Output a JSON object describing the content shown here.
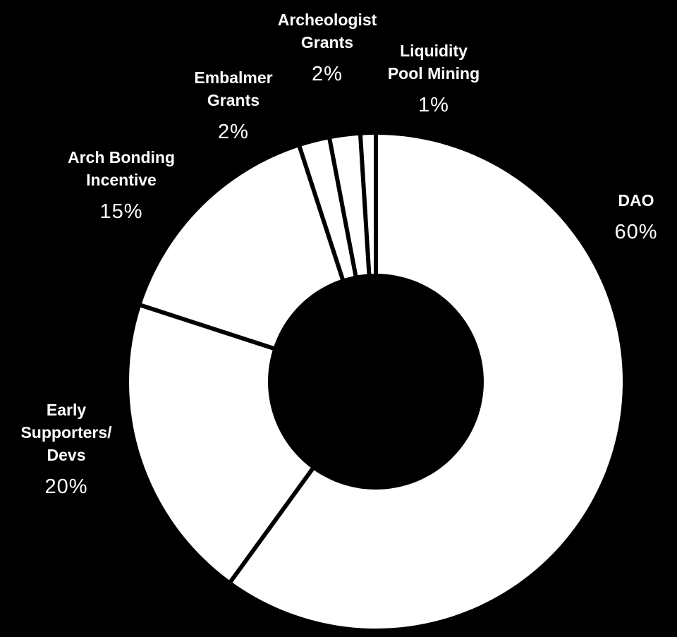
{
  "chart_data": {
    "type": "pie",
    "donut": true,
    "start_angle_deg": 0,
    "direction": "clockwise",
    "colors": {
      "background": "#000000",
      "slice_fill": "#ffffff",
      "separator": "#000000",
      "label_text": "#ffffff"
    },
    "slices": [
      {
        "label_lines": [
          "DAO"
        ],
        "percent_label": "60%",
        "value": 60
      },
      {
        "label_lines": [
          "Early",
          "Supporters/",
          "Devs"
        ],
        "percent_label": "20%",
        "value": 20
      },
      {
        "label_lines": [
          "Arch Bonding",
          "Incentive"
        ],
        "percent_label": "15%",
        "value": 15
      },
      {
        "label_lines": [
          "Embalmer",
          "Grants"
        ],
        "percent_label": "2%",
        "value": 2
      },
      {
        "label_lines": [
          "Archeologist",
          "Grants"
        ],
        "percent_label": "2%",
        "value": 2
      },
      {
        "label_lines": [
          "Liquidity",
          "Pool Mining"
        ],
        "percent_label": "1%",
        "value": 1
      }
    ]
  }
}
